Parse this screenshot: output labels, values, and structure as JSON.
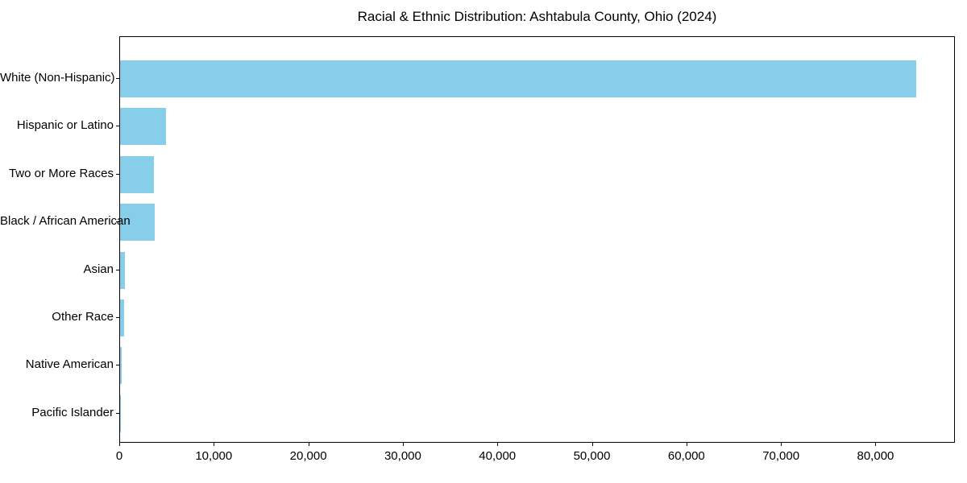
{
  "title": "Racial & Ethnic Distribution: Ashtabula County, Ohio (2024)",
  "chart_data": {
    "type": "bar",
    "orientation": "horizontal",
    "title": "Racial & Ethnic Distribution: Ashtabula County, Ohio (2024)",
    "categories": [
      "White (Non-Hispanic)",
      "Hispanic or Latino",
      "Two or More Races",
      "Black / African American",
      "Asian",
      "Other Race",
      "Native American",
      "Pacific Islander"
    ],
    "values": [
      84200,
      4850,
      3600,
      3700,
      500,
      400,
      150,
      30
    ],
    "xlabel": "",
    "ylabel": "",
    "xlim": [
      0,
      88400
    ],
    "xticks": [
      0,
      10000,
      20000,
      30000,
      40000,
      50000,
      60000,
      70000,
      80000
    ],
    "xtick_labels": [
      "0",
      "10,000",
      "20,000",
      "30,000",
      "40,000",
      "50,000",
      "60,000",
      "70,000",
      "80,000"
    ],
    "bar_color": "#87CEEB",
    "grid": false,
    "legend": null,
    "background_color": "#ffffff",
    "spine_color": "#000000"
  }
}
